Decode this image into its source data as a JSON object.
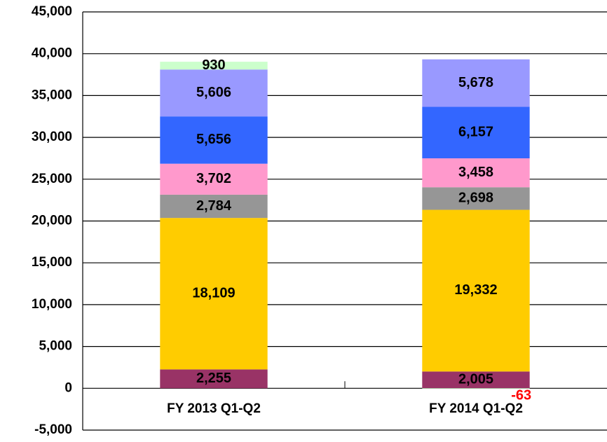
{
  "chart_data": {
    "type": "stacked_bar",
    "categories": [
      "FY 2013 Q1-Q2",
      "FY 2014 Q1-Q2"
    ],
    "series": [
      {
        "color": "#993366",
        "values": [
          2255,
          2005
        ],
        "value_labels": [
          "2,255",
          "2,005"
        ]
      },
      {
        "color": "#ffcc00",
        "values": [
          18109,
          19332
        ],
        "value_labels": [
          "18,109",
          "19,332"
        ]
      },
      {
        "color": "#969696",
        "values": [
          2784,
          2698
        ],
        "value_labels": [
          "2,784",
          "2,698"
        ]
      },
      {
        "color": "#ff99cc",
        "values": [
          3702,
          3458
        ],
        "value_labels": [
          "3,702",
          "3,458"
        ]
      },
      {
        "color": "#3366ff",
        "values": [
          5656,
          6157
        ],
        "value_labels": [
          "5,656",
          "6,157"
        ]
      },
      {
        "color": "#9999ff",
        "values": [
          5606,
          5678
        ],
        "value_labels": [
          "5,606",
          "5,678"
        ]
      },
      {
        "color": "#ccffcc",
        "values": [
          930,
          -63
        ],
        "value_labels": [
          "930",
          "-63"
        ]
      }
    ],
    "negative_label_color": "#ff0000",
    "ylim": [
      -5000,
      45000
    ],
    "yticks": [
      {
        "value": -5000,
        "label": "-5,000"
      },
      0,
      {
        "value": 5000,
        "label": "5,000"
      },
      {
        "value": 10000,
        "label": "10,000"
      },
      {
        "value": 15000,
        "label": "15,000"
      },
      {
        "value": 20000,
        "label": "20,000"
      },
      {
        "value": 25000,
        "label": "25,000"
      },
      {
        "value": 30000,
        "label": "30,000"
      },
      {
        "value": 35000,
        "label": "35,000"
      },
      {
        "value": 40000,
        "label": "40,000"
      },
      {
        "value": 45000,
        "label": "45,000"
      }
    ],
    "grid": true
  }
}
